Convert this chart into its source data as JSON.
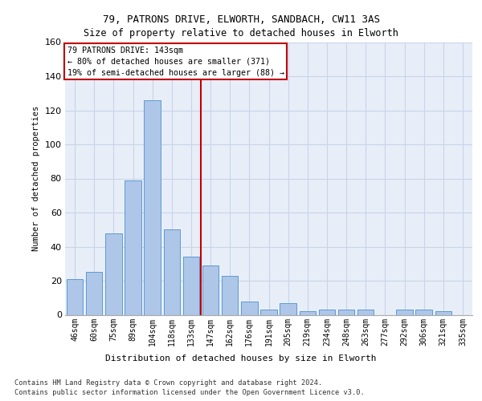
{
  "title1": "79, PATRONS DRIVE, ELWORTH, SANDBACH, CW11 3AS",
  "title2": "Size of property relative to detached houses in Elworth",
  "xlabel": "Distribution of detached houses by size in Elworth",
  "ylabel": "Number of detached properties",
  "categories": [
    "46sqm",
    "60sqm",
    "75sqm",
    "89sqm",
    "104sqm",
    "118sqm",
    "133sqm",
    "147sqm",
    "162sqm",
    "176sqm",
    "191sqm",
    "205sqm",
    "219sqm",
    "234sqm",
    "248sqm",
    "263sqm",
    "277sqm",
    "292sqm",
    "306sqm",
    "321sqm",
    "335sqm"
  ],
  "values": [
    21,
    25,
    48,
    79,
    126,
    50,
    34,
    29,
    23,
    8,
    3,
    7,
    2,
    3,
    3,
    3,
    0,
    3,
    3,
    2,
    0
  ],
  "bar_color": "#aec6e8",
  "bar_edgecolor": "#5b9bd5",
  "redline_x": 6.5,
  "annotation_title": "79 PATRONS DRIVE: 143sqm",
  "annotation_line1": "← 80% of detached houses are smaller (371)",
  "annotation_line2": "19% of semi-detached houses are larger (88) →",
  "redline_color": "#c00000",
  "footer1": "Contains HM Land Registry data © Crown copyright and database right 2024.",
  "footer2": "Contains public sector information licensed under the Open Government Licence v3.0.",
  "ylim": [
    0,
    160
  ],
  "yticks": [
    0,
    20,
    40,
    60,
    80,
    100,
    120,
    140,
    160
  ],
  "grid_color": "#c8d4e8",
  "bg_color": "#e8eef8"
}
